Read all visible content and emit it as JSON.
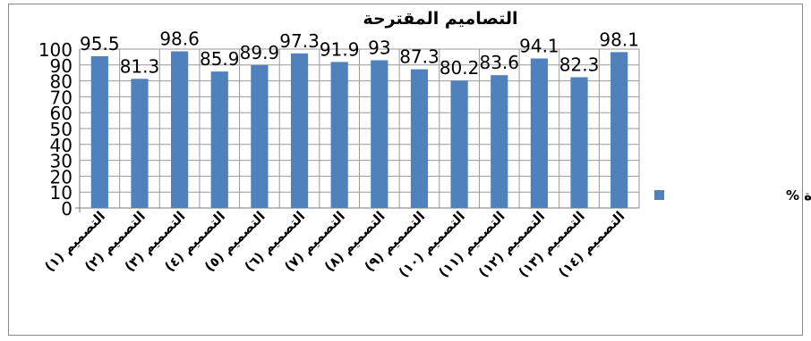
{
  "chart_data": {
    "type": "bar",
    "title": "التصاميم المقترحة",
    "categories": [
      "التصميم (١)",
      "التصميم (٢)",
      "التصميم (٣)",
      "التصميم (٤)",
      "التصميم (٥)",
      "التصميم (٦)",
      "التصميم (٧)",
      "التصميم (٨)",
      "التصميم (٩)",
      "التصميم (١٠)",
      "التصميم (١١)",
      "التصميم (١٢)",
      "التصميم (١٣)",
      "التصميم (١٤)"
    ],
    "series": [
      {
        "name": "معامل الجودة %",
        "color": "#4f81bd",
        "values": [
          95.5,
          81.3,
          98.6,
          85.9,
          89.9,
          97.3,
          91.9,
          93,
          87.3,
          80.2,
          83.6,
          94.1,
          82.3,
          98.1
        ],
        "data_labels": [
          "95.5",
          "81.3",
          "98.6",
          "85.9",
          "89.9",
          "97.3",
          "91.9",
          "93",
          "87.3",
          "80.2",
          "83.6",
          "94.1",
          "82.3",
          "98.1"
        ]
      }
    ],
    "ylim": [
      0,
      100
    ],
    "yticks": [
      0,
      10,
      20,
      30,
      40,
      50,
      60,
      70,
      80,
      90,
      100
    ],
    "grid": true,
    "legend": "right"
  }
}
